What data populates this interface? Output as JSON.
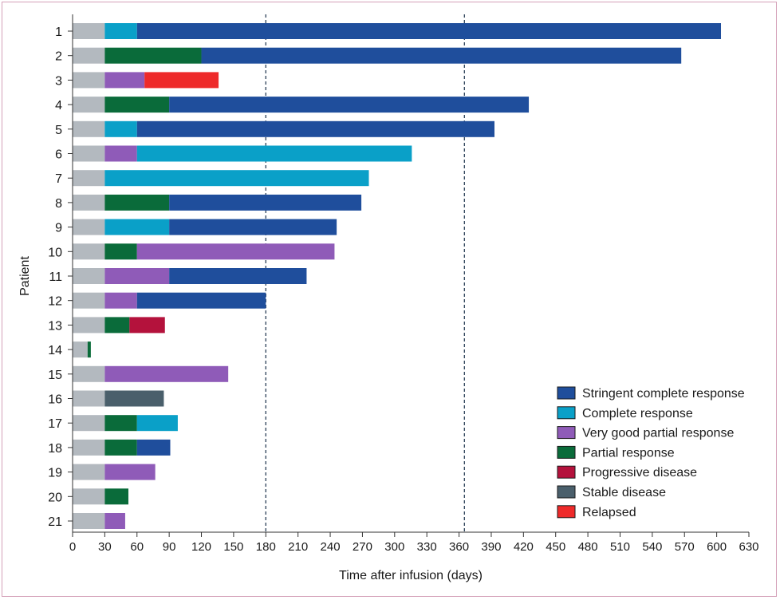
{
  "chart_data": {
    "type": "bar",
    "orientation": "horizontal",
    "xlabel": "Time after infusion (days)",
    "ylabel": "Patient",
    "xlim": [
      0,
      630
    ],
    "xticks": [
      0,
      30,
      60,
      90,
      120,
      150,
      180,
      210,
      240,
      270,
      300,
      330,
      360,
      390,
      420,
      450,
      480,
      510,
      540,
      570,
      600,
      630
    ],
    "reference_lines_days": [
      180,
      365
    ],
    "categories": [
      "1",
      "2",
      "3",
      "4",
      "5",
      "6",
      "7",
      "8",
      "9",
      "10",
      "11",
      "12",
      "13",
      "14",
      "15",
      "16",
      "17",
      "18",
      "19",
      "20",
      "21"
    ],
    "status_colors": {
      "Baseline": "#b3b9bf",
      "Stringent complete response": "#1f4e9c",
      "Complete response": "#0aa0c8",
      "Very good partial response": "#8f5bb8",
      "Partial response": "#0a6b3a",
      "Progressive disease": "#b4123c",
      "Stable disease": "#4a5f6b",
      "Relapsed": "#ee2a2a"
    },
    "legend": [
      "Stringent complete response",
      "Complete response",
      "Very good partial response",
      "Partial response",
      "Progressive disease",
      "Stable disease",
      "Relapsed"
    ],
    "series": [
      {
        "patient": "1",
        "segments": [
          {
            "status": "Baseline",
            "start": 0,
            "end": 30
          },
          {
            "status": "Complete response",
            "start": 30,
            "end": 60
          },
          {
            "status": "Stringent complete response",
            "start": 60,
            "end": 604
          }
        ]
      },
      {
        "patient": "2",
        "segments": [
          {
            "status": "Baseline",
            "start": 0,
            "end": 30
          },
          {
            "status": "Partial response",
            "start": 30,
            "end": 120
          },
          {
            "status": "Stringent complete response",
            "start": 120,
            "end": 567
          }
        ]
      },
      {
        "patient": "3",
        "segments": [
          {
            "status": "Baseline",
            "start": 0,
            "end": 30
          },
          {
            "status": "Very good partial response",
            "start": 30,
            "end": 67
          },
          {
            "status": "Relapsed",
            "start": 67,
            "end": 136
          }
        ]
      },
      {
        "patient": "4",
        "segments": [
          {
            "status": "Baseline",
            "start": 0,
            "end": 30
          },
          {
            "status": "Partial response",
            "start": 30,
            "end": 90
          },
          {
            "status": "Stringent complete response",
            "start": 90,
            "end": 425
          }
        ]
      },
      {
        "patient": "5",
        "segments": [
          {
            "status": "Baseline",
            "start": 0,
            "end": 30
          },
          {
            "status": "Complete response",
            "start": 30,
            "end": 60
          },
          {
            "status": "Stringent complete response",
            "start": 60,
            "end": 393
          }
        ]
      },
      {
        "patient": "6",
        "segments": [
          {
            "status": "Baseline",
            "start": 0,
            "end": 30
          },
          {
            "status": "Very good partial response",
            "start": 30,
            "end": 60
          },
          {
            "status": "Complete response",
            "start": 60,
            "end": 316
          }
        ]
      },
      {
        "patient": "7",
        "segments": [
          {
            "status": "Baseline",
            "start": 0,
            "end": 30
          },
          {
            "status": "Complete response",
            "start": 30,
            "end": 276
          }
        ]
      },
      {
        "patient": "8",
        "segments": [
          {
            "status": "Baseline",
            "start": 0,
            "end": 30
          },
          {
            "status": "Partial response",
            "start": 30,
            "end": 90
          },
          {
            "status": "Stringent complete response",
            "start": 90,
            "end": 269
          }
        ]
      },
      {
        "patient": "9",
        "segments": [
          {
            "status": "Baseline",
            "start": 0,
            "end": 30
          },
          {
            "status": "Complete response",
            "start": 30,
            "end": 90
          },
          {
            "status": "Stringent complete response",
            "start": 90,
            "end": 246
          }
        ]
      },
      {
        "patient": "10",
        "segments": [
          {
            "status": "Baseline",
            "start": 0,
            "end": 30
          },
          {
            "status": "Partial response",
            "start": 30,
            "end": 60
          },
          {
            "status": "Very good partial response",
            "start": 60,
            "end": 244
          }
        ]
      },
      {
        "patient": "11",
        "segments": [
          {
            "status": "Baseline",
            "start": 0,
            "end": 30
          },
          {
            "status": "Very good partial response",
            "start": 30,
            "end": 90
          },
          {
            "status": "Stringent complete response",
            "start": 90,
            "end": 218
          }
        ]
      },
      {
        "patient": "12",
        "segments": [
          {
            "status": "Baseline",
            "start": 0,
            "end": 30
          },
          {
            "status": "Very good partial response",
            "start": 30,
            "end": 60
          },
          {
            "status": "Stringent complete response",
            "start": 60,
            "end": 180
          }
        ]
      },
      {
        "patient": "13",
        "segments": [
          {
            "status": "Baseline",
            "start": 0,
            "end": 30
          },
          {
            "status": "Partial response",
            "start": 30,
            "end": 53
          },
          {
            "status": "Progressive disease",
            "start": 53,
            "end": 86
          }
        ]
      },
      {
        "patient": "14",
        "segments": [
          {
            "status": "Baseline",
            "start": 0,
            "end": 14
          },
          {
            "status": "Partial response",
            "start": 14,
            "end": 17
          }
        ]
      },
      {
        "patient": "15",
        "segments": [
          {
            "status": "Baseline",
            "start": 0,
            "end": 30
          },
          {
            "status": "Very good partial response",
            "start": 30,
            "end": 145
          }
        ]
      },
      {
        "patient": "16",
        "segments": [
          {
            "status": "Baseline",
            "start": 0,
            "end": 30
          },
          {
            "status": "Stable disease",
            "start": 30,
            "end": 85
          }
        ]
      },
      {
        "patient": "17",
        "segments": [
          {
            "status": "Baseline",
            "start": 0,
            "end": 30
          },
          {
            "status": "Partial response",
            "start": 30,
            "end": 60
          },
          {
            "status": "Complete response",
            "start": 60,
            "end": 98
          }
        ]
      },
      {
        "patient": "18",
        "segments": [
          {
            "status": "Baseline",
            "start": 0,
            "end": 30
          },
          {
            "status": "Partial response",
            "start": 30,
            "end": 60
          },
          {
            "status": "Stringent complete response",
            "start": 60,
            "end": 91
          }
        ]
      },
      {
        "patient": "19",
        "segments": [
          {
            "status": "Baseline",
            "start": 0,
            "end": 30
          },
          {
            "status": "Very good partial response",
            "start": 30,
            "end": 77
          }
        ]
      },
      {
        "patient": "20",
        "segments": [
          {
            "status": "Baseline",
            "start": 0,
            "end": 30
          },
          {
            "status": "Partial response",
            "start": 30,
            "end": 52
          }
        ]
      },
      {
        "patient": "21",
        "segments": [
          {
            "status": "Baseline",
            "start": 0,
            "end": 30
          },
          {
            "status": "Very good partial response",
            "start": 30,
            "end": 49
          }
        ]
      }
    ]
  }
}
